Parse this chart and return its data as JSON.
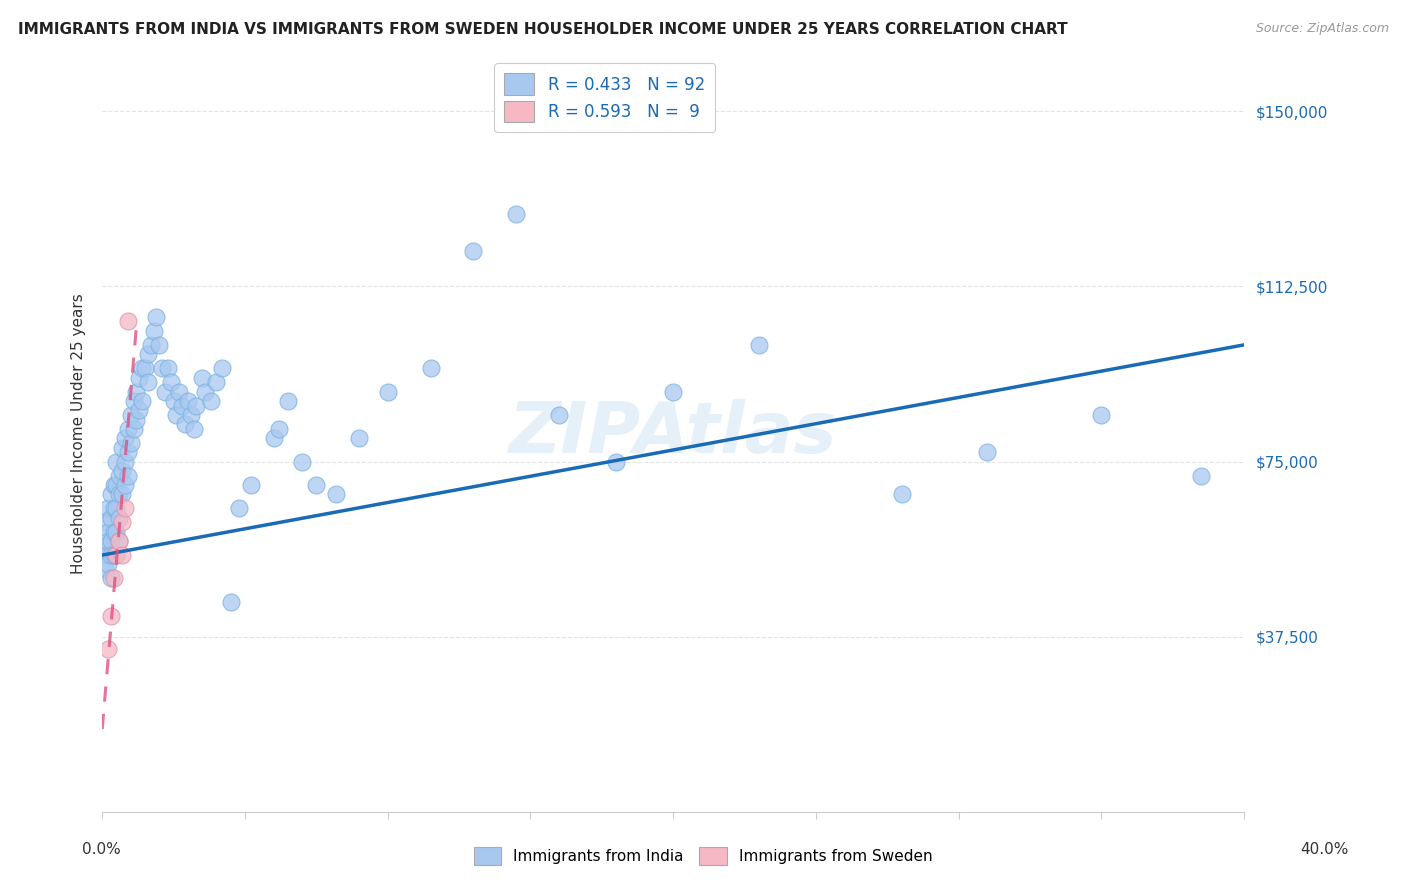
{
  "title": "IMMIGRANTS FROM INDIA VS IMMIGRANTS FROM SWEDEN HOUSEHOLDER INCOME UNDER 25 YEARS CORRELATION CHART",
  "source": "Source: ZipAtlas.com",
  "ylabel": "Householder Income Under 25 years",
  "yticks": [
    0,
    37500,
    75000,
    112500,
    150000
  ],
  "ytick_labels": [
    "",
    "$37,500",
    "$75,000",
    "$112,500",
    "$150,000"
  ],
  "xlim": [
    0,
    0.4
  ],
  "ylim": [
    0,
    162000
  ],
  "legend_india": "Immigrants from India",
  "legend_sweden": "Immigrants from Sweden",
  "R_india": 0.433,
  "N_india": 92,
  "R_sweden": 0.593,
  "N_sweden": 9,
  "india_color": "#a8c8f0",
  "india_line_color": "#1a6bb5",
  "sweden_color": "#f5b8c4",
  "sweden_line_color": "#e05080",
  "watermark": "ZIPAtlas",
  "india_x": [
    0.001,
    0.001,
    0.001,
    0.002,
    0.002,
    0.002,
    0.002,
    0.002,
    0.003,
    0.003,
    0.003,
    0.003,
    0.003,
    0.004,
    0.004,
    0.004,
    0.004,
    0.005,
    0.005,
    0.005,
    0.005,
    0.005,
    0.006,
    0.006,
    0.006,
    0.006,
    0.007,
    0.007,
    0.007,
    0.008,
    0.008,
    0.008,
    0.009,
    0.009,
    0.009,
    0.01,
    0.01,
    0.011,
    0.011,
    0.012,
    0.012,
    0.013,
    0.013,
    0.014,
    0.014,
    0.015,
    0.016,
    0.016,
    0.017,
    0.018,
    0.019,
    0.02,
    0.021,
    0.022,
    0.023,
    0.024,
    0.025,
    0.026,
    0.027,
    0.028,
    0.029,
    0.03,
    0.031,
    0.032,
    0.033,
    0.035,
    0.036,
    0.038,
    0.04,
    0.042,
    0.045,
    0.048,
    0.052,
    0.06,
    0.062,
    0.065,
    0.07,
    0.075,
    0.082,
    0.09,
    0.1,
    0.115,
    0.13,
    0.145,
    0.16,
    0.18,
    0.2,
    0.23,
    0.28,
    0.31,
    0.35,
    0.385
  ],
  "india_y": [
    57000,
    62000,
    52000,
    60000,
    55000,
    65000,
    58000,
    53000,
    63000,
    68000,
    58000,
    55000,
    50000,
    70000,
    65000,
    60000,
    55000,
    75000,
    70000,
    65000,
    60000,
    55000,
    72000,
    68000,
    63000,
    58000,
    78000,
    73000,
    68000,
    80000,
    75000,
    70000,
    82000,
    77000,
    72000,
    85000,
    79000,
    88000,
    82000,
    90000,
    84000,
    93000,
    86000,
    95000,
    88000,
    95000,
    98000,
    92000,
    100000,
    103000,
    106000,
    100000,
    95000,
    90000,
    95000,
    92000,
    88000,
    85000,
    90000,
    87000,
    83000,
    88000,
    85000,
    82000,
    87000,
    93000,
    90000,
    88000,
    92000,
    95000,
    45000,
    65000,
    70000,
    80000,
    82000,
    88000,
    75000,
    70000,
    68000,
    80000,
    90000,
    95000,
    120000,
    128000,
    85000,
    75000,
    90000,
    100000,
    68000,
    77000,
    85000,
    72000
  ],
  "sweden_x": [
    0.002,
    0.003,
    0.004,
    0.005,
    0.006,
    0.007,
    0.007,
    0.008,
    0.009
  ],
  "sweden_y": [
    35000,
    42000,
    50000,
    55000,
    58000,
    55000,
    62000,
    65000,
    105000
  ],
  "india_trend_x": [
    0.0,
    0.4
  ],
  "india_trend_y": [
    55000,
    100000
  ],
  "sweden_trend_x0": 0.0,
  "sweden_trend_x1": 0.012,
  "grid_color": "#e0e0e0",
  "title_fontsize": 11,
  "source_fontsize": 9,
  "axis_label_fontsize": 11,
  "ytick_fontsize": 11
}
